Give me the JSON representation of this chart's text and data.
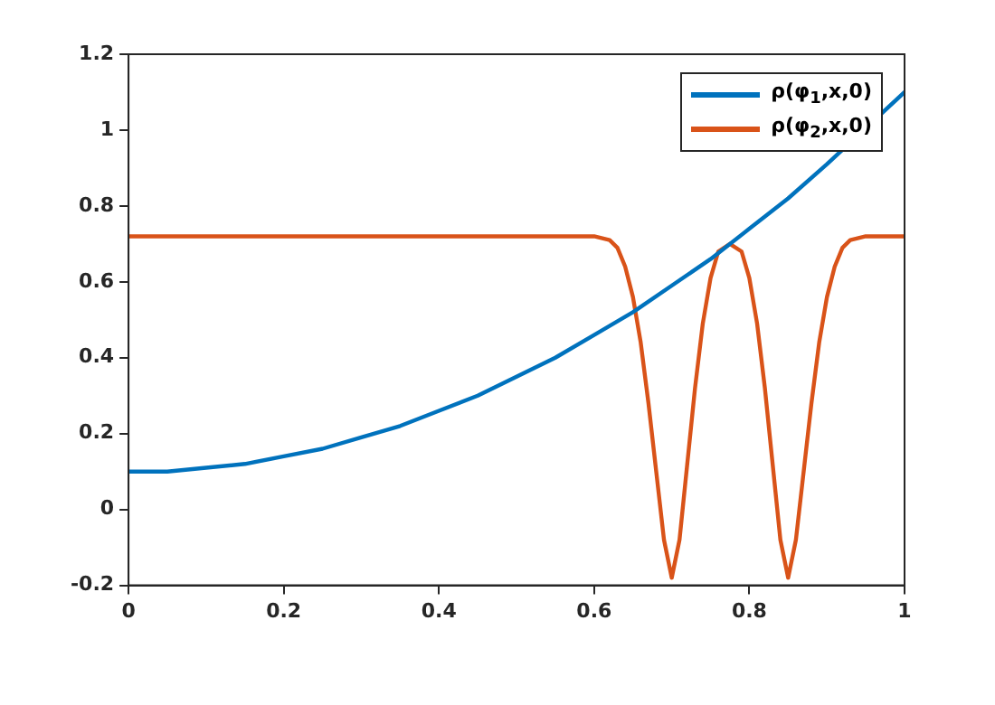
{
  "chart_data": {
    "type": "line",
    "xlim": [
      0,
      1
    ],
    "ylim": [
      -0.2,
      1.2
    ],
    "xticks": [
      0,
      0.2,
      0.4,
      0.6,
      0.8,
      1
    ],
    "yticks": [
      -0.2,
      0,
      0.2,
      0.4,
      0.6,
      0.8,
      1,
      1.2
    ],
    "grid": false,
    "legend": "top right",
    "marker": "none",
    "line_style": "solid",
    "series": [
      {
        "name": "ρ(φ$_{1}$,x,0)",
        "color": "#0072bd",
        "x": [
          0,
          0.05,
          0.1,
          0.15,
          0.2,
          0.25,
          0.3,
          0.35,
          0.4,
          0.45,
          0.5,
          0.55,
          0.6,
          0.65,
          0.7,
          0.75,
          0.8,
          0.85,
          0.9,
          0.95,
          1
        ],
        "values": [
          0.1,
          0.1,
          0.11,
          0.12,
          0.14,
          0.16,
          0.19,
          0.22,
          0.26,
          0.3,
          0.35,
          0.4,
          0.46,
          0.52,
          0.59,
          0.66,
          0.74,
          0.82,
          0.91,
          null,
          1.1
        ]
      },
      {
        "name": "ρ(φ$_{2}$,x,0)",
        "color": "#d95319",
        "x": [
          0,
          0.6,
          0.62,
          0.63,
          0.64,
          0.65,
          0.66,
          0.67,
          0.68,
          0.69,
          0.7,
          0.71,
          0.72,
          0.73,
          0.74,
          0.75,
          0.76,
          0.775,
          0.79,
          0.8,
          0.81,
          0.82,
          0.83,
          0.84,
          0.85,
          0.86,
          0.87,
          0.88,
          0.89,
          0.9,
          0.91,
          0.92,
          0.93,
          0.95,
          1
        ],
        "values": [
          0.72,
          0.72,
          0.71,
          0.69,
          0.64,
          0.56,
          0.44,
          0.28,
          0.1,
          -0.08,
          -0.18,
          -0.08,
          0.12,
          0.32,
          0.49,
          0.61,
          0.68,
          0.7,
          0.68,
          0.61,
          0.49,
          0.32,
          0.12,
          -0.08,
          -0.18,
          -0.08,
          0.1,
          0.28,
          0.44,
          0.56,
          0.64,
          0.69,
          0.71,
          0.72,
          0.72
        ]
      }
    ]
  }
}
